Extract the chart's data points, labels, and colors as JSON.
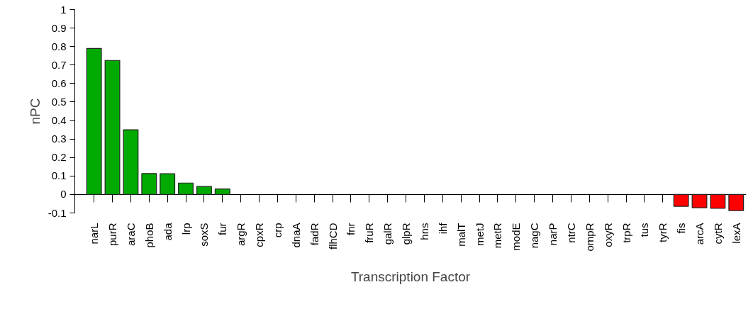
{
  "chart_data": {
    "type": "bar",
    "xlabel": "Transcription Factor",
    "ylabel": "nPC",
    "categories": [
      "narL",
      "purR",
      "araC",
      "phoB",
      "ada",
      "lrp",
      "soxS",
      "fur",
      "argR",
      "cpxR",
      "crp",
      "dnaA",
      "fadR",
      "flhCD",
      "fnr",
      "fruR",
      "galR",
      "glpR",
      "hns",
      "ihf",
      "malT",
      "metJ",
      "metR",
      "modE",
      "nagC",
      "narP",
      "ntrC",
      "ompR",
      "oxyR",
      "trpR",
      "tus",
      "tyrR",
      "fis",
      "arcA",
      "cytR",
      "lexA"
    ],
    "values": [
      0.79,
      0.725,
      0.35,
      0.113,
      0.112,
      0.062,
      0.043,
      0.03,
      null,
      null,
      null,
      null,
      null,
      null,
      null,
      null,
      null,
      null,
      null,
      null,
      null,
      null,
      null,
      null,
      null,
      null,
      null,
      null,
      null,
      null,
      null,
      null,
      -0.064,
      -0.072,
      -0.075,
      -0.087
    ],
    "colors": [
      "#00aa00",
      "#00aa00",
      "#00aa00",
      "#00aa00",
      "#00aa00",
      "#00aa00",
      "#00aa00",
      "#00aa00",
      "#00aa00",
      "#00aa00",
      "#00aa00",
      "#00aa00",
      "#00aa00",
      "#00aa00",
      "#00aa00",
      "#00aa00",
      "#00aa00",
      "#00aa00",
      "#00aa00",
      "#00aa00",
      "#00aa00",
      "#00aa00",
      "#00aa00",
      "#00aa00",
      "#00aa00",
      "#00aa00",
      "#00aa00",
      "#00aa00",
      "#00aa00",
      "#00aa00",
      "#00aa00",
      "#00aa00",
      "#ff0000",
      "#ff0000",
      "#ff0000",
      "#ff0000"
    ],
    "ylim": [
      -0.1,
      1
    ],
    "yticks": [
      -0.1,
      0,
      0.1,
      0.2,
      0.3,
      0.4,
      0.5,
      0.6,
      0.7,
      0.8,
      0.9,
      1
    ]
  }
}
